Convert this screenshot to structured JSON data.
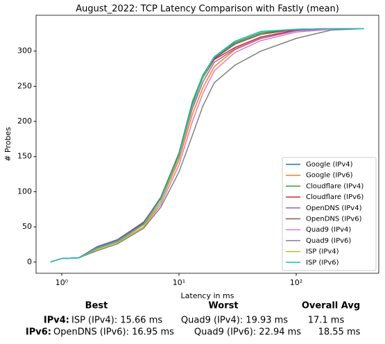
{
  "chart_data": {
    "type": "line",
    "title": "August_2022: TCP Latency Comparison with Fastly (mean)",
    "xlabel": "Latency in ms",
    "ylabel": "# Probes",
    "xscale": "log",
    "xlim": [
      0.604,
      506
    ],
    "ylim": [
      -16,
      351
    ],
    "xticks": [
      {
        "value": 1,
        "label": "10⁰"
      },
      {
        "value": 10,
        "label": "10¹"
      },
      {
        "value": 100,
        "label": "10²"
      }
    ],
    "yticks": [
      0,
      50,
      100,
      150,
      200,
      250,
      300
    ],
    "legend": "lower right",
    "series": [
      {
        "name": "Google (IPv4)",
        "color": "#1f77b4",
        "x": [
          0.8,
          1,
          1.4,
          2,
          3,
          5,
          7,
          10,
          13,
          16,
          20,
          30,
          50,
          100,
          200,
          380
        ],
        "values": [
          0,
          5,
          6,
          20,
          30,
          55,
          90,
          152,
          222,
          262,
          290,
          310,
          324,
          331,
          332,
          332
        ]
      },
      {
        "name": "Google (IPv6)",
        "color": "#ff7f0e",
        "x": [
          0.8,
          1,
          1.4,
          2,
          3,
          5,
          7,
          10,
          13,
          16,
          20,
          30,
          50,
          100,
          200,
          380
        ],
        "values": [
          0,
          5,
          6,
          19,
          29,
          53,
          86,
          145,
          210,
          248,
          278,
          302,
          318,
          329,
          332,
          332
        ]
      },
      {
        "name": "Cloudflare (IPv4)",
        "color": "#2ca02c",
        "x": [
          0.8,
          1,
          1.4,
          2,
          3,
          5,
          7,
          10,
          13,
          16,
          20,
          30,
          50,
          100,
          200,
          380
        ],
        "values": [
          0,
          5,
          6,
          20,
          31,
          56,
          92,
          155,
          228,
          266,
          292,
          312,
          326,
          331,
          332,
          332
        ]
      },
      {
        "name": "Cloudflare (IPv6)",
        "color": "#d62728",
        "x": [
          0.8,
          1,
          1.4,
          2,
          3,
          5,
          7,
          10,
          13,
          16,
          20,
          30,
          50,
          100,
          200,
          380
        ],
        "values": [
          0,
          5,
          6,
          20,
          31,
          56,
          91,
          153,
          225,
          262,
          288,
          305,
          320,
          330,
          332,
          332
        ]
      },
      {
        "name": "OpenDNS (IPv4)",
        "color": "#9467bd",
        "x": [
          0.8,
          1,
          1.4,
          2,
          3,
          5,
          7,
          10,
          13,
          16,
          20,
          30,
          50,
          100,
          200,
          380
        ],
        "values": [
          0,
          5,
          6,
          22,
          32,
          57,
          90,
          150,
          218,
          256,
          284,
          303,
          318,
          329,
          332,
          332
        ]
      },
      {
        "name": "OpenDNS (IPv6)",
        "color": "#8c564b",
        "x": [
          0.8,
          1,
          1.4,
          2,
          3,
          5,
          7,
          10,
          13,
          16,
          20,
          30,
          50,
          100,
          200,
          380
        ],
        "values": [
          0,
          5,
          6,
          21,
          31,
          56,
          92,
          154,
          224,
          262,
          289,
          310,
          324,
          331,
          332,
          332
        ]
      },
      {
        "name": "Quad9 (IPv4)",
        "color": "#e377c2",
        "x": [
          0.8,
          1,
          1.4,
          2,
          3,
          5,
          7,
          10,
          13,
          16,
          20,
          30,
          50,
          100,
          200,
          380
        ],
        "values": [
          0,
          5,
          6,
          18,
          28,
          50,
          82,
          138,
          200,
          240,
          272,
          298,
          315,
          327,
          331,
          332
        ]
      },
      {
        "name": "Quad9 (IPv6)",
        "color": "#7f7f7f",
        "x": [
          0.8,
          1,
          1.4,
          2,
          3,
          5,
          7,
          10,
          13,
          16,
          20,
          30,
          50,
          100,
          200,
          380
        ],
        "values": [
          0,
          5,
          6,
          16,
          26,
          48,
          78,
          128,
          180,
          222,
          255,
          280,
          300,
          318,
          330,
          332
        ]
      },
      {
        "name": "ISP (IPv4)",
        "color": "#bcbd22",
        "x": [
          0.8,
          1,
          1.4,
          2,
          3,
          5,
          7,
          10,
          13,
          16,
          20,
          30,
          50,
          100,
          200,
          380
        ],
        "values": [
          0,
          5,
          6,
          18,
          28,
          50,
          86,
          150,
          222,
          262,
          292,
          314,
          328,
          331,
          332,
          332
        ]
      },
      {
        "name": "ISP (IPv6)",
        "color": "#17becf",
        "x": [
          0.8,
          1,
          1.4,
          2,
          3,
          5,
          7,
          10,
          13,
          16,
          20,
          30,
          50,
          100,
          200,
          380
        ],
        "values": [
          0,
          5,
          6,
          20,
          30,
          54,
          90,
          152,
          224,
          264,
          292,
          314,
          328,
          331,
          332,
          332
        ]
      }
    ]
  },
  "summary": {
    "headers": [
      "Best",
      "Worst",
      "Overall Avg"
    ],
    "rows": [
      {
        "label": "IPv4:",
        "best": "ISP (IPv4): 15.66 ms",
        "worst": "Quad9 (IPv4): 19.93 ms",
        "avg": "17.1 ms"
      },
      {
        "label": "IPv6:",
        "best": "OpenDNS (IPv6): 16.95 ms",
        "worst": "Quad9 (IPv6): 22.94 ms",
        "avg": "18.55 ms"
      }
    ]
  }
}
